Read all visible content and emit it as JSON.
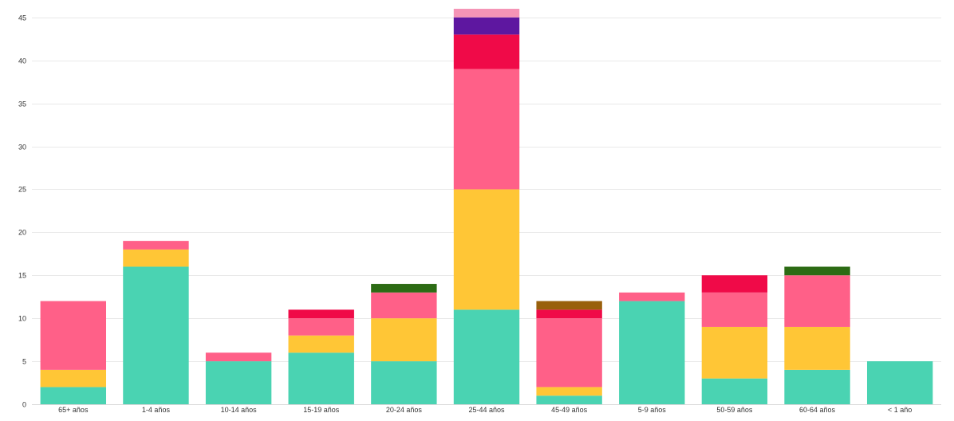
{
  "chart_data": {
    "type": "bar",
    "stacked": true,
    "categories": [
      "65+ años",
      "1-4 años",
      "10-14 años",
      "15-19 años",
      "20-24 años",
      "25-44 años",
      "45-49 años",
      "5-9 años",
      "50-59 años",
      "60-64 años",
      "< 1 año"
    ],
    "series": [
      {
        "color": "#4ad3b2",
        "values": [
          2,
          16,
          5,
          6,
          5,
          11,
          1,
          12,
          3,
          4,
          5
        ]
      },
      {
        "color": "#ffc636",
        "values": [
          2,
          2,
          0,
          2,
          5,
          14,
          1,
          0,
          6,
          5,
          0
        ]
      },
      {
        "color": "#ff6088",
        "values": [
          8,
          1,
          1,
          2,
          3,
          14,
          8,
          1,
          4,
          6,
          0
        ]
      },
      {
        "color": "#f00a48",
        "values": [
          0,
          0,
          0,
          1,
          0,
          4,
          1,
          0,
          2,
          0,
          0
        ]
      },
      {
        "color": "#2c6b14",
        "values": [
          0,
          0,
          0,
          0,
          1,
          0,
          0,
          0,
          0,
          1,
          0
        ]
      },
      {
        "color": "#99600c",
        "values": [
          0,
          0,
          0,
          0,
          0,
          0,
          1,
          0,
          0,
          0,
          0
        ]
      },
      {
        "color": "#5e17a0",
        "values": [
          0,
          0,
          0,
          0,
          0,
          2,
          0,
          0,
          0,
          0,
          0
        ]
      },
      {
        "color": "#f594b6",
        "values": [
          0,
          0,
          0,
          0,
          0,
          1,
          0,
          0,
          0,
          0,
          0
        ]
      }
    ],
    "yticks": [
      0,
      5,
      10,
      15,
      20,
      25,
      30,
      35,
      40,
      45
    ],
    "ylim": [
      0,
      46
    ],
    "grid": true,
    "legend": "none"
  }
}
